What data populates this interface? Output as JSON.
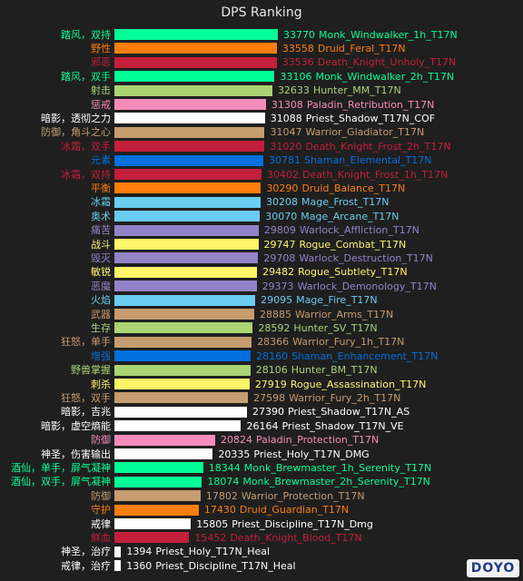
{
  "chart_data": {
    "type": "bar",
    "orientation": "horizontal",
    "title": "DPS Ranking",
    "grid": false,
    "legend": "none",
    "bars": [
      {
        "spec": "踏风，双持",
        "label": "Monk_Windwalker_1h_T17N",
        "value": 33770,
        "color": "#00ff96",
        "spec_color": "#00ff96"
      },
      {
        "spec": "野性",
        "label": "Druid_Feral_T17N",
        "value": 33558,
        "color": "#ff7d0a",
        "spec_color": "#ff7d0a"
      },
      {
        "spec": "邪恶",
        "label": "Death_Knight_Unholy_T17N",
        "value": 33536,
        "color": "#c41f3b",
        "spec_color": "#c41f3b"
      },
      {
        "spec": "踏风，双手",
        "label": "Monk_Windwalker_2h_T17N",
        "value": 33106,
        "color": "#00ff96",
        "spec_color": "#00ff96"
      },
      {
        "spec": "射击",
        "label": "Hunter_MM_T17N",
        "value": 32633,
        "color": "#abd473",
        "spec_color": "#abd473"
      },
      {
        "spec": "惩戒",
        "label": "Paladin_Retribution_T17N",
        "value": 31308,
        "color": "#f58cba",
        "spec_color": "#f58cba"
      },
      {
        "spec": "暗影，透彻之力",
        "label": "Priest_Shadow_T17N_COF",
        "value": 31088,
        "color": "#ffffff",
        "spec_color": "#ffffff"
      },
      {
        "spec": "防御，角斗之心",
        "label": "Warrior_Gladiator_T17N",
        "value": 31047,
        "color": "#c79c6e",
        "spec_color": "#c79c6e"
      },
      {
        "spec": "冰霜，双手",
        "label": "Death_Knight_Frost_2h_T17N",
        "value": 31020,
        "color": "#c41f3b",
        "spec_color": "#c41f3b"
      },
      {
        "spec": "元素",
        "label": "Shaman_Elemental_T17N",
        "value": 30781,
        "color": "#0070de",
        "spec_color": "#0070de"
      },
      {
        "spec": "冰霜，双持",
        "label": "Death_Knight_Frost_1h_T17N",
        "value": 30402,
        "color": "#c41f3b",
        "spec_color": "#c41f3b"
      },
      {
        "spec": "平衡",
        "label": "Druid_Balance_T17N",
        "value": 30290,
        "color": "#ff7d0a",
        "spec_color": "#ff7d0a"
      },
      {
        "spec": "冰霜",
        "label": "Mage_Frost_T17N",
        "value": 30208,
        "color": "#69ccf0",
        "spec_color": "#69ccf0"
      },
      {
        "spec": "奥术",
        "label": "Mage_Arcane_T17N",
        "value": 30070,
        "color": "#69ccf0",
        "spec_color": "#69ccf0"
      },
      {
        "spec": "痛苦",
        "label": "Warlock_Affliction_T17N",
        "value": 29809,
        "color": "#9482c9",
        "spec_color": "#9482c9"
      },
      {
        "spec": "战斗",
        "label": "Rogue_Combat_T17N",
        "value": 29747,
        "color": "#fff569",
        "spec_color": "#fff569"
      },
      {
        "spec": "毁灭",
        "label": "Warlock_Destruction_T17N",
        "value": 29708,
        "color": "#9482c9",
        "spec_color": "#9482c9"
      },
      {
        "spec": "敏锐",
        "label": "Rogue_Subtlety_T17N",
        "value": 29482,
        "color": "#fff569",
        "spec_color": "#fff569"
      },
      {
        "spec": "恶魔",
        "label": "Warlock_Demonology_T17N",
        "value": 29373,
        "color": "#9482c9",
        "spec_color": "#9482c9"
      },
      {
        "spec": "火焰",
        "label": "Mage_Fire_T17N",
        "value": 29095,
        "color": "#69ccf0",
        "spec_color": "#69ccf0"
      },
      {
        "spec": "武器",
        "label": "Warrior_Arms_T17N",
        "value": 28885,
        "color": "#c79c6e",
        "spec_color": "#c79c6e"
      },
      {
        "spec": "生存",
        "label": "Hunter_SV_T17N",
        "value": 28592,
        "color": "#abd473",
        "spec_color": "#abd473"
      },
      {
        "spec": "狂怒，单手",
        "label": "Warrior_Fury_1h_T17N",
        "value": 28366,
        "color": "#c79c6e",
        "spec_color": "#c79c6e"
      },
      {
        "spec": "增强",
        "label": "Shaman_Enhancement_T17N",
        "value": 28160,
        "color": "#0070de",
        "spec_color": "#0070de"
      },
      {
        "spec": "野兽掌握",
        "label": "Hunter_BM_T17N",
        "value": 28106,
        "color": "#abd473",
        "spec_color": "#abd473"
      },
      {
        "spec": "刺杀",
        "label": "Rogue_Assassination_T17N",
        "value": 27919,
        "color": "#fff569",
        "spec_color": "#fff569"
      },
      {
        "spec": "狂怒，双手",
        "label": "Warrior_Fury_2h_T17N",
        "value": 27598,
        "color": "#c79c6e",
        "spec_color": "#c79c6e"
      },
      {
        "spec": "暗影，吉兆",
        "label": "Priest_Shadow_T17N_AS",
        "value": 27390,
        "color": "#ffffff",
        "spec_color": "#ffffff"
      },
      {
        "spec": "暗影，虚空熵能",
        "label": "Priest_Shadow_T17N_VE",
        "value": 26164,
        "color": "#ffffff",
        "spec_color": "#ffffff"
      },
      {
        "spec": "防御",
        "label": "Paladin_Protection_T17N",
        "value": 20824,
        "color": "#f58cba",
        "spec_color": "#f58cba"
      },
      {
        "spec": "神圣，伤害输出",
        "label": "Priest_Holy_T17N_DMG",
        "value": 20335,
        "color": "#ffffff",
        "spec_color": "#ffffff"
      },
      {
        "spec": "酒仙，单手，屏气凝神",
        "label": "Monk_Brewmaster_1h_Serenity_T17N",
        "value": 18344,
        "color": "#00ff96",
        "spec_color": "#00ff96"
      },
      {
        "spec": "酒仙，双手，屏气凝神",
        "label": "Monk_Brewmaster_2h_Serenity_T17N",
        "value": 18074,
        "color": "#00ff96",
        "spec_color": "#00ff96"
      },
      {
        "spec": "防御",
        "label": "Warrior_Protection_T17N",
        "value": 17802,
        "color": "#c79c6e",
        "spec_color": "#c79c6e"
      },
      {
        "spec": "守护",
        "label": "Druid_Guardian_T17N",
        "value": 17430,
        "color": "#ff7d0a",
        "spec_color": "#ff7d0a"
      },
      {
        "spec": "戒律",
        "label": "Priest_Discipline_T17N_Dmg",
        "value": 15805,
        "color": "#ffffff",
        "spec_color": "#ffffff"
      },
      {
        "spec": "鲜血",
        "label": "Death_Knight_Blood_T17N",
        "value": 15452,
        "color": "#c41f3b",
        "spec_color": "#c41f3b"
      },
      {
        "spec": "神圣，治疗",
        "label": "Priest_Holy_T17N_Heal",
        "value": 1394,
        "color": "#ffffff",
        "spec_color": "#ffffff"
      },
      {
        "spec": "戒律，治疗",
        "label": "Priest_Discipline_T17N_Heal",
        "value": 1360,
        "color": "#ffffff",
        "spec_color": "#ffffff"
      }
    ]
  },
  "watermark": "DOYO"
}
